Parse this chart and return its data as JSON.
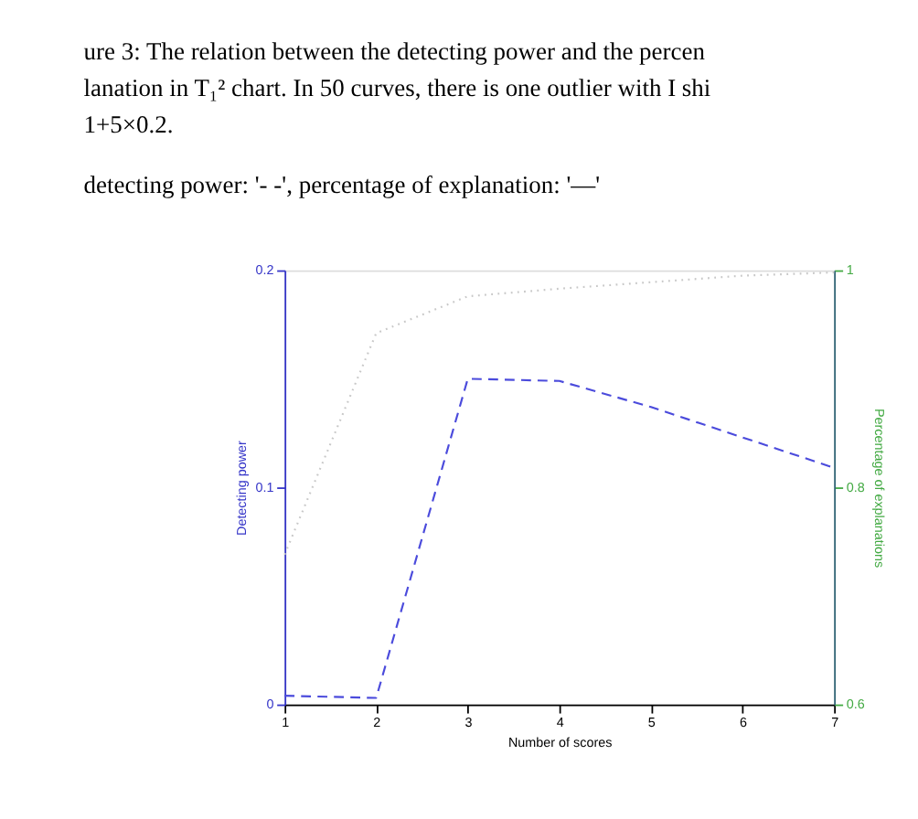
{
  "chart_data": {
    "type": "line",
    "title": [
      "ure 3: The relation between the detecting power and the percen",
      "lanation in T₁² chart. In 50 curves, there is one outlier with I shi",
      "1+5×0.2."
    ],
    "subtitle": "detecting power: '- -', percentage of explanation: '—'",
    "xlabel": "Number of scores",
    "ylabel": "Detecting power",
    "y2label": "Percentage of explanations",
    "x": [
      1,
      2,
      3,
      4,
      5,
      6,
      7
    ],
    "series": [
      {
        "color": "#4b4bdc",
        "line_style": "dashed",
        "values": [
          0.004,
          0.003,
          0.15,
          0.149,
          0.137,
          0.123,
          0.109
        ]
      },
      {
        "color": "#c8c8c8",
        "line_style": "dotted",
        "axis": "y2",
        "values": [
          0.738,
          0.942,
          0.976,
          0.983,
          0.989,
          0.995,
          0.998
        ]
      }
    ],
    "xlim": [
      1,
      7
    ],
    "xticks": [
      1,
      2,
      3,
      4,
      5,
      6,
      7
    ],
    "ylim": [
      0,
      0.2
    ],
    "yticks": [
      0,
      0.1,
      0.2
    ],
    "y2lim": [
      0.6,
      1
    ],
    "y2ticks": [
      0.6,
      0.8,
      1
    ],
    "grid": false,
    "marker": "none"
  }
}
